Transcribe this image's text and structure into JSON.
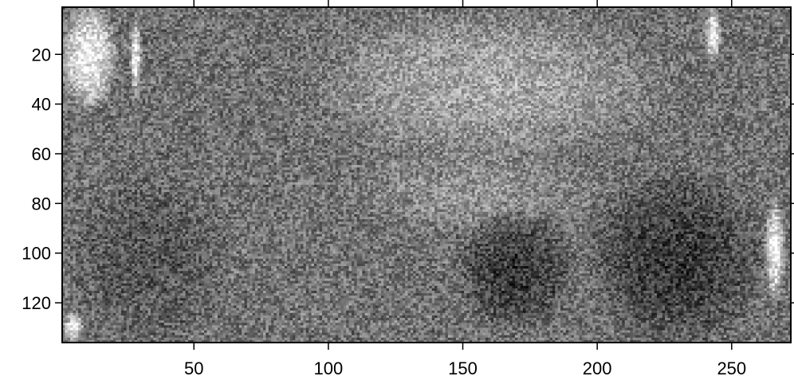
{
  "chart_data": {
    "type": "heatmap",
    "title": "",
    "xlabel": "",
    "ylabel": "",
    "colormap": "grayscale",
    "xlim": [
      1,
      272
    ],
    "ylim": [
      136,
      1
    ],
    "y_direction": "downward",
    "grid": false,
    "legend": "none",
    "x_ticks": [
      50,
      100,
      150,
      200,
      250
    ],
    "y_ticks": [
      20,
      40,
      60,
      80,
      100,
      120
    ],
    "x_tick_labels": [
      "50",
      "100",
      "150",
      "200",
      "250"
    ],
    "y_tick_labels": [
      "20",
      "40",
      "60",
      "80",
      "100",
      "120"
    ],
    "dims": {
      "columns": 272,
      "rows": 136
    },
    "intensity_range": [
      0,
      1
    ],
    "intensity_description": "0 = black, 1 = white",
    "regions": [
      {
        "name": "upper-left bright corner",
        "x": [
          1,
          20
        ],
        "y": [
          1,
          40
        ],
        "level": 0.95
      },
      {
        "name": "upper-left white stripe",
        "x": [
          26,
          30
        ],
        "y": [
          5,
          35
        ],
        "level": 0.92
      },
      {
        "name": "upper light band",
        "x": [
          100,
          220
        ],
        "y": [
          5,
          60
        ],
        "level": 0.66
      },
      {
        "name": "central light area",
        "x": [
          110,
          200
        ],
        "y": [
          60,
          90
        ],
        "level": 0.58
      },
      {
        "name": "upper-right white stripe",
        "x": [
          241,
          246
        ],
        "y": [
          1,
          22
        ],
        "level": 0.97
      },
      {
        "name": "right white strip",
        "x": [
          263,
          270
        ],
        "y": [
          80,
          118
        ],
        "level": 0.95
      },
      {
        "name": "left middle dark area",
        "x": [
          5,
          60
        ],
        "y": [
          70,
          135
        ],
        "level": 0.33
      },
      {
        "name": "lower center dark area",
        "x": [
          150,
          190
        ],
        "y": [
          85,
          130
        ],
        "level": 0.22
      },
      {
        "name": "lower right dark area",
        "x": [
          200,
          260
        ],
        "y": [
          70,
          135
        ],
        "level": 0.22
      },
      {
        "name": "bottom-left bright corner",
        "x": [
          1,
          8
        ],
        "y": [
          125,
          136
        ],
        "level": 0.93
      }
    ]
  }
}
